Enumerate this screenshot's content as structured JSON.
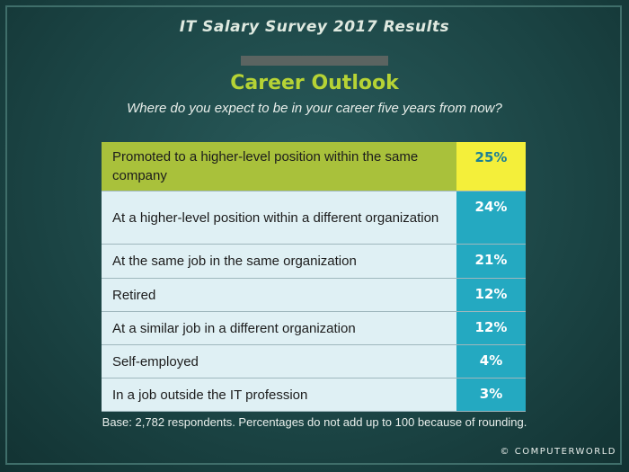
{
  "header": {
    "title": "IT Salary Survey 2017 Results",
    "heading": "Career Outlook",
    "subtitle": "Where do you expect to be in your career five years from now?"
  },
  "table": {
    "rows": [
      [
        "Promoted to a higher-level position within the same company",
        "25%"
      ],
      [
        "At a higher-level position within a different organization",
        "24%"
      ],
      [
        "At the same job in the same organization",
        "21%"
      ],
      [
        "Retired",
        "12%"
      ],
      [
        "At a similar job in a different organization",
        "12%"
      ],
      [
        "Self-employed",
        "4%"
      ],
      [
        "In a job outside the IT profession",
        "3%"
      ]
    ]
  },
  "footer": {
    "note": "Base: 2,782 respondents. Percentages do not add up to 100 because of rounding.",
    "credit": "© COMPUTERWORLD"
  }
}
